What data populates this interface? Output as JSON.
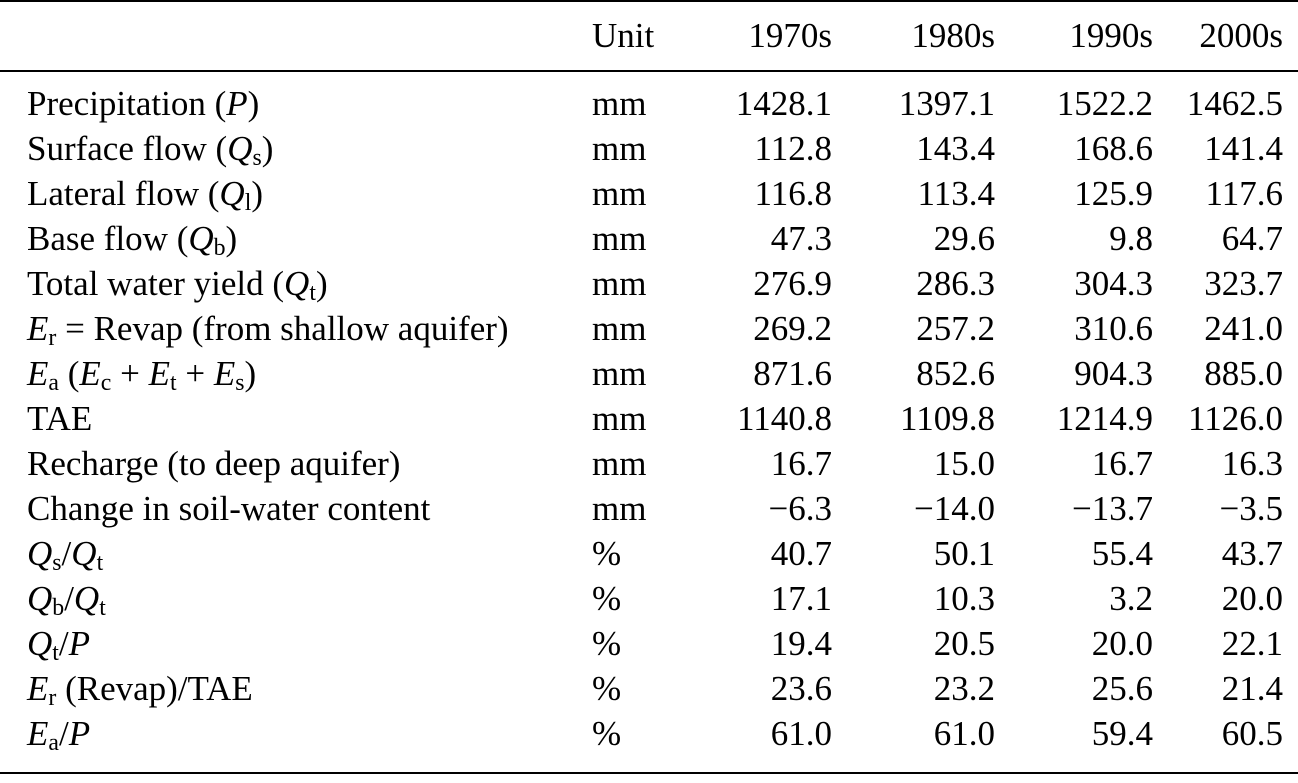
{
  "colors": {
    "background": "#ffffff",
    "text": "#000000",
    "rule": "#000000"
  },
  "table": {
    "columns": [
      "",
      "Unit",
      "1970s",
      "1980s",
      "1990s",
      "2000s"
    ],
    "rows": [
      {
        "label": "Precipitation (*P*)",
        "unit": "mm",
        "values": [
          "1428.1",
          "1397.1",
          "1522.2",
          "1462.5"
        ]
      },
      {
        "label": "Surface flow (*Q*~s~)",
        "unit": "mm",
        "values": [
          "112.8",
          "143.4",
          "168.6",
          "141.4"
        ]
      },
      {
        "label": "Lateral flow (*Q*~l~)",
        "unit": "mm",
        "values": [
          "116.8",
          "113.4",
          "125.9",
          "117.6"
        ]
      },
      {
        "label": "Base flow (*Q*~b~)",
        "unit": "mm",
        "values": [
          "47.3",
          "29.6",
          "9.8",
          "64.7"
        ]
      },
      {
        "label": "Total water yield (*Q*~t~)",
        "unit": "mm",
        "values": [
          "276.9",
          "286.3",
          "304.3",
          "323.7"
        ]
      },
      {
        "label": "*E*~r~ = Revap (from shallow aquifer)",
        "unit": "mm",
        "values": [
          "269.2",
          "257.2",
          "310.6",
          "241.0"
        ]
      },
      {
        "label": "*E*~a~ (*E*~c~ + *E*~t~ + *E*~s~)",
        "unit": "mm",
        "values": [
          "871.6",
          "852.6",
          "904.3",
          "885.0"
        ]
      },
      {
        "label": "TAE",
        "unit": "mm",
        "values": [
          "1140.8",
          "1109.8",
          "1214.9",
          "1126.0"
        ]
      },
      {
        "label": "Recharge (to deep aquifer)",
        "unit": "mm",
        "values": [
          "16.7",
          "15.0",
          "16.7",
          "16.3"
        ]
      },
      {
        "label": "Change in soil-water content",
        "unit": "mm",
        "values": [
          "−6.3",
          "−14.0",
          "−13.7",
          "−3.5"
        ]
      },
      {
        "label": "*Q*~s~/*Q*~t~",
        "unit": "%",
        "values": [
          "40.7",
          "50.1",
          "55.4",
          "43.7"
        ]
      },
      {
        "label": "*Q*~b~/*Q*~t~",
        "unit": "%",
        "values": [
          "17.1",
          "10.3",
          "3.2",
          "20.0"
        ]
      },
      {
        "label": "*Q*~t~/*P*",
        "unit": "%",
        "values": [
          "19.4",
          "20.5",
          "20.0",
          "22.1"
        ]
      },
      {
        "label": "*E*~r~ (Revap)/TAE",
        "unit": "%",
        "values": [
          "23.6",
          "23.2",
          "25.6",
          "21.4"
        ]
      },
      {
        "label": "*E*~a~/*P*",
        "unit": "%",
        "values": [
          "61.0",
          "61.0",
          "59.4",
          "60.5"
        ]
      }
    ]
  }
}
